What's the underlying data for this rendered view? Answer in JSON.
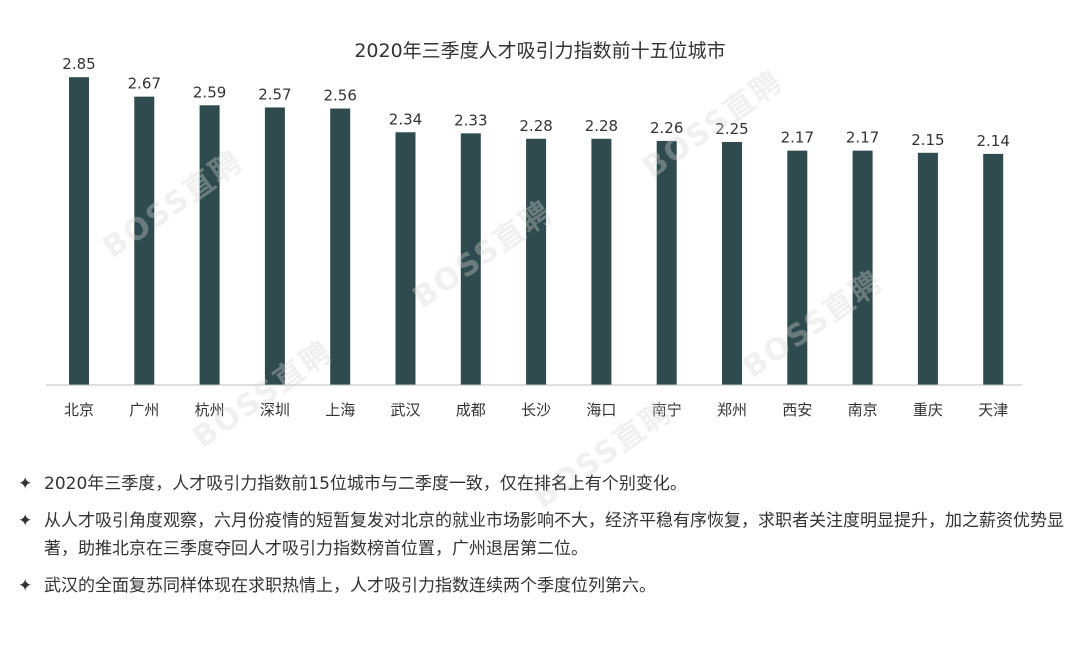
{
  "chart_data": {
    "type": "bar",
    "title": "2020年三季度人才吸引力指数前十五位城市",
    "categories": [
      "北京",
      "广州",
      "杭州",
      "深圳",
      "上海",
      "武汉",
      "成都",
      "长沙",
      "海口",
      "南宁",
      "郑州",
      "西安",
      "南京",
      "重庆",
      "天津"
    ],
    "values": [
      2.85,
      2.67,
      2.59,
      2.57,
      2.56,
      2.34,
      2.33,
      2.28,
      2.28,
      2.26,
      2.25,
      2.17,
      2.17,
      2.15,
      2.14
    ],
    "value_labels": [
      "2.85",
      "2.67",
      "2.59",
      "2.57",
      "2.56",
      "2.34",
      "2.33",
      "2.28",
      "2.28",
      "2.26",
      "2.25",
      "2.17",
      "2.17",
      "2.15",
      "2.14"
    ],
    "ylim": [
      0,
      3
    ],
    "grid": false,
    "bar_color": "#2f4b4d",
    "xlabel": "",
    "ylabel": ""
  },
  "watermark_text": "BOSS直聘",
  "notes": [
    {
      "bullet": "✦",
      "text": "2020年三季度，人才吸引力指数前15位城市与二季度一致，仅在排名上有个别变化。"
    },
    {
      "bullet": "✦",
      "text": "从人才吸引角度观察，六月份疫情的短暂复发对北京的就业市场影响不大，经济平稳有序恢复，求职者关注度明显提升，加之薪资优势显著，助推北京在三季度夺回人才吸引力指数榜首位置，广州退居第二位。"
    },
    {
      "bullet": "✦",
      "text": "武汉的全面复苏同样体现在求职热情上，人才吸引力指数连续两个季度位列第六。"
    }
  ]
}
